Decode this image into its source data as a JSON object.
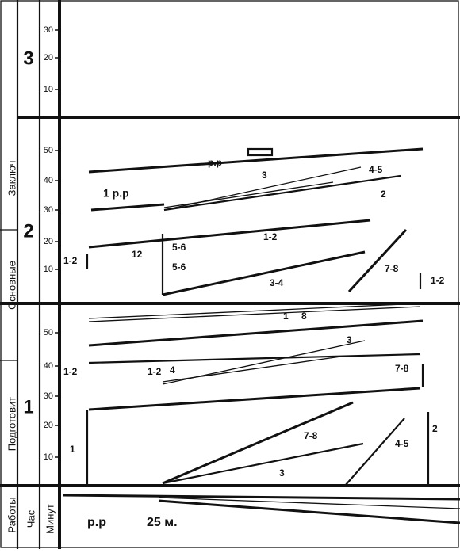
{
  "sidebar": {
    "stages": [
      "Заключ",
      "Основные",
      "Подготовит",
      "Работы"
    ],
    "hour_header": "Час",
    "minute_header": "Минут"
  },
  "hours": [
    {
      "label": "3",
      "minutes": [
        "30",
        "20",
        "10"
      ]
    },
    {
      "label": "2",
      "minutes": [
        "50",
        "40",
        "30",
        "20",
        "10"
      ]
    },
    {
      "label": "1",
      "minutes": [
        "50",
        "40",
        "30",
        "20",
        "10"
      ]
    }
  ],
  "annotations": [
    "р.р",
    "1 р.р",
    "3",
    "4-5",
    "2",
    "1-2",
    "12",
    "5-6",
    "5-6",
    "1-2",
    "3-4",
    "7-8",
    "1-2",
    "1",
    "8",
    "3",
    "1-2",
    "1-2",
    "4",
    "7-8",
    "2",
    "1",
    "7-8",
    "3",
    "4-5"
  ],
  "footer": {
    "start": "р.р",
    "duration": "25 м."
  }
}
